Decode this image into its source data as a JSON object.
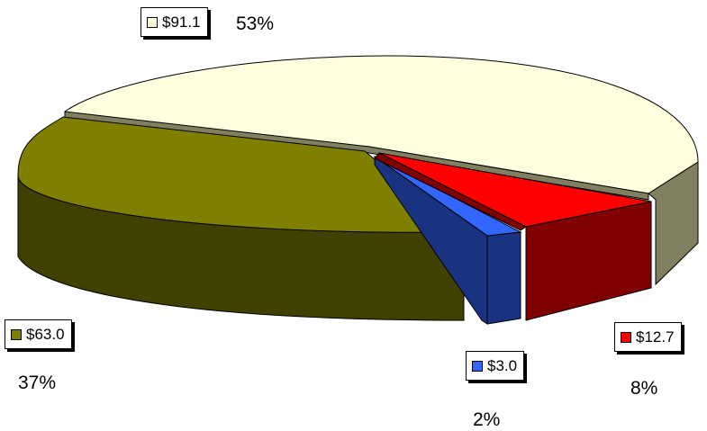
{
  "chart_data": {
    "type": "pie",
    "style": "3d-exploded",
    "slices": [
      {
        "value_label": "$91.1",
        "value": 91.1,
        "percent_label": "53%",
        "color": "#FFFFE0",
        "side_color": "#808060"
      },
      {
        "value_label": "$12.7",
        "value": 12.7,
        "percent_label": "8%",
        "color": "#FF0000",
        "side_color": "#800000"
      },
      {
        "value_label": "$3.0",
        "value": 3.0,
        "percent_label": "2%",
        "color": "#3366FF",
        "side_color": "#1A3380"
      },
      {
        "value_label": "$63.0",
        "value": 63.0,
        "percent_label": "37%",
        "color": "#808000",
        "side_color": "#404000"
      }
    ]
  }
}
